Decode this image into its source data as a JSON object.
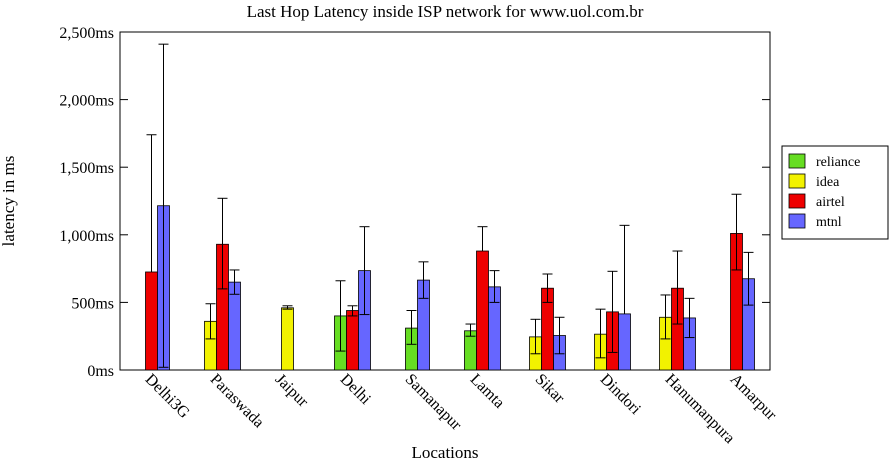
{
  "chart_data": {
    "type": "bar",
    "title": "Last Hop Latency inside ISP network for www.uol.com.br",
    "xlabel": "Locations",
    "ylabel": "latency in ms",
    "ylim": [
      0,
      2500
    ],
    "yticks": [
      {
        "value": 0,
        "label": "0ms"
      },
      {
        "value": 500,
        "label": "500ms"
      },
      {
        "value": 1000,
        "label": "1,000ms"
      },
      {
        "value": 1500,
        "label": "1,500ms"
      },
      {
        "value": 2000,
        "label": "2,000ms"
      },
      {
        "value": 2500,
        "label": "2,500ms"
      }
    ],
    "grid": false,
    "legend_position": "right",
    "categories": [
      "Delhi3G",
      "Paraswada",
      "Jaipur",
      "Delhi",
      "Samanapur",
      "Lamta",
      "Sikar",
      "Dindori",
      "Hanumanpura",
      "Amarpur"
    ],
    "series": [
      {
        "name": "reliance",
        "color": "#66dd22",
        "values": [
          null,
          null,
          null,
          400,
          310,
          290,
          null,
          null,
          null,
          null
        ],
        "error_low": [
          null,
          null,
          null,
          140,
          190,
          250,
          null,
          null,
          null,
          null
        ],
        "error_high": [
          null,
          null,
          null,
          660,
          440,
          340,
          null,
          null,
          null,
          null
        ]
      },
      {
        "name": "idea",
        "color": "#f2f200",
        "values": [
          null,
          360,
          460,
          null,
          null,
          null,
          245,
          265,
          390,
          null
        ],
        "error_low": [
          null,
          230,
          450,
          null,
          null,
          null,
          120,
          90,
          230,
          null
        ],
        "error_high": [
          null,
          490,
          475,
          null,
          null,
          null,
          375,
          450,
          555,
          null
        ]
      },
      {
        "name": "airtel",
        "color": "#ee0000",
        "values": [
          725,
          930,
          null,
          440,
          null,
          880,
          605,
          430,
          605,
          1010
        ],
        "error_low": [
          null,
          600,
          null,
          400,
          null,
          null,
          500,
          130,
          340,
          740
        ],
        "error_high": [
          1740,
          1270,
          null,
          475,
          null,
          1060,
          710,
          730,
          880,
          1300
        ]
      },
      {
        "name": "mtnl",
        "color": "#6666ff",
        "values": [
          1215,
          650,
          null,
          735,
          665,
          615,
          255,
          415,
          385,
          675
        ],
        "error_low": [
          20,
          560,
          null,
          410,
          530,
          500,
          120,
          null,
          240,
          480
        ],
        "error_high": [
          2410,
          740,
          null,
          1060,
          800,
          735,
          390,
          1070,
          530,
          870
        ]
      }
    ]
  }
}
